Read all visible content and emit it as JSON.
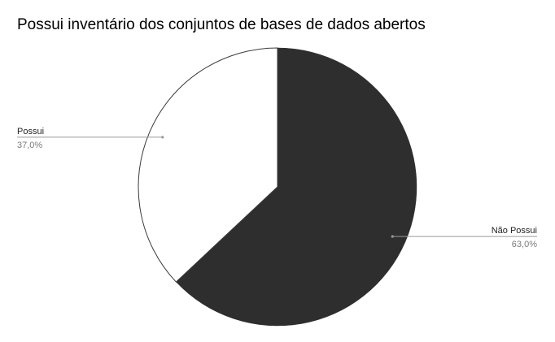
{
  "chart_data": {
    "type": "pie",
    "title": "Possui inventário dos conjuntos de bases de dados abertos",
    "slices": [
      {
        "label": "Não Possui",
        "value": 63.0,
        "display": "63,0%",
        "color": "#2e2e2e"
      },
      {
        "label": "Possui",
        "value": 37.0,
        "display": "37,0%",
        "color": "#ffffff"
      }
    ],
    "start_angle_deg": 0,
    "direction": "clockwise",
    "legend": "none",
    "label_positions": [
      "right",
      "left"
    ]
  }
}
